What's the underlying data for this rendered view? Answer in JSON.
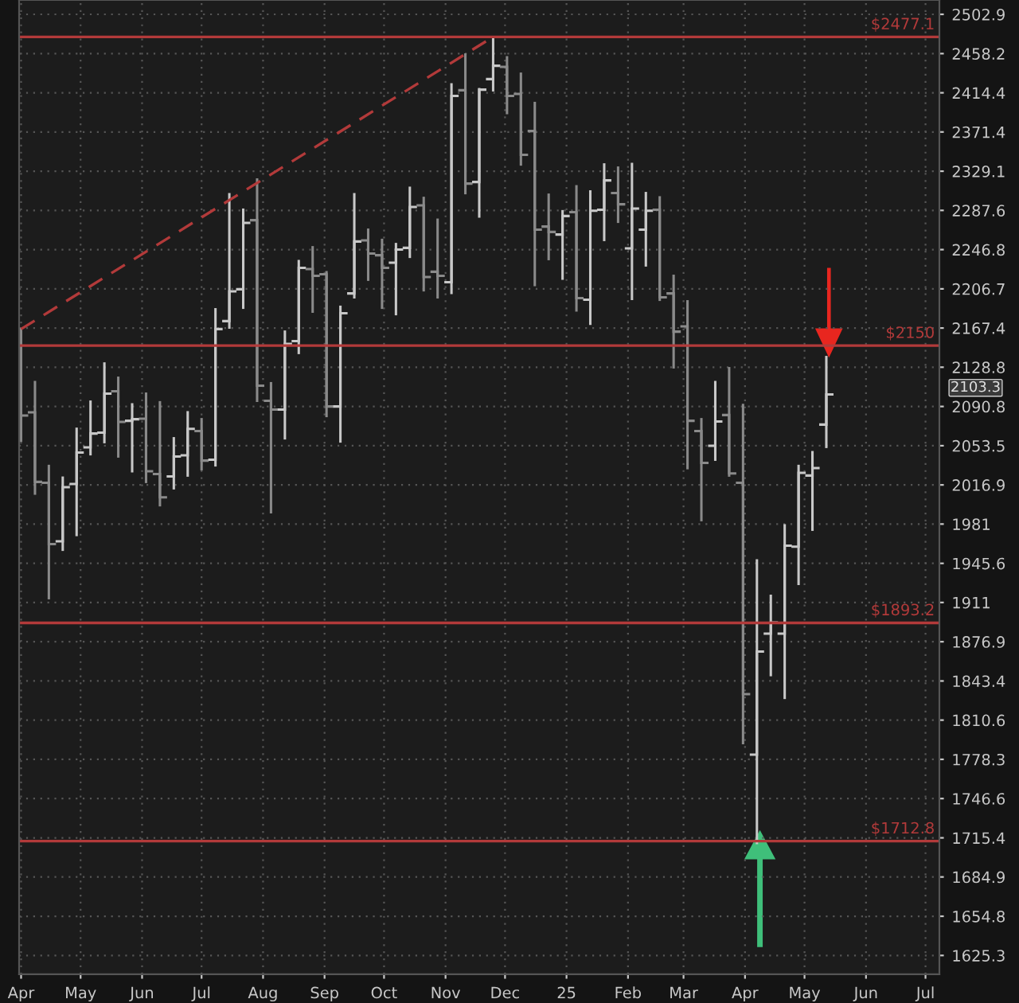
{
  "chart_data": {
    "type": "candlestick",
    "x": [
      "2024-04-01",
      "2024-04-08",
      "2024-04-15",
      "2024-04-22",
      "2024-04-29",
      "2024-05-06",
      "2024-05-13",
      "2024-05-20",
      "2024-05-27",
      "2024-06-03",
      "2024-06-10",
      "2024-06-17",
      "2024-06-24",
      "2024-07-01",
      "2024-07-08",
      "2024-07-15",
      "2024-07-22",
      "2024-07-29",
      "2024-08-05",
      "2024-08-12",
      "2024-08-19",
      "2024-08-26",
      "2024-09-02",
      "2024-09-09",
      "2024-09-16",
      "2024-09-23",
      "2024-09-30",
      "2024-10-07",
      "2024-10-14",
      "2024-10-21",
      "2024-10-28",
      "2024-11-04",
      "2024-11-11",
      "2024-11-18",
      "2024-11-25",
      "2024-12-02",
      "2024-12-09",
      "2024-12-16",
      "2024-12-23",
      "2024-12-30",
      "2025-01-06",
      "2025-01-13",
      "2025-01-20",
      "2025-01-27",
      "2025-02-03",
      "2025-02-10",
      "2025-02-17",
      "2025-02-24",
      "2025-03-03",
      "2025-03-10",
      "2025-03-17",
      "2025-03-24",
      "2025-03-31",
      "2025-04-07",
      "2025-04-14",
      "2025-04-21",
      "2025-04-28",
      "2025-05-05",
      "2025-05-12"
    ],
    "ohlc": [
      [
        2114.3,
        2166.4,
        2058.4,
        2082.1
      ],
      [
        2085.2,
        2114.3,
        2008.9,
        2019.7
      ],
      [
        2018.8,
        2034.5,
        1914.8,
        1962.9
      ],
      [
        1965.4,
        2023.6,
        1957.8,
        2014.8
      ],
      [
        2017.7,
        2069.5,
        1971.1,
        2047.0
      ],
      [
        2051.9,
        2095.4,
        2045.5,
        2065.0
      ],
      [
        2065.9,
        2132.4,
        2056.9,
        2103.1
      ],
      [
        2105.5,
        2118.5,
        2043.4,
        2076.0
      ],
      [
        2077.1,
        2092.8,
        2029.6,
        2078.6
      ],
      [
        2079.1,
        2103.1,
        2019.7,
        2029.6
      ],
      [
        2027.0,
        2094.8,
        1998.2,
        2005.5
      ],
      [
        2024.7,
        2060.5,
        2013.8,
        2043.4
      ],
      [
        2044.4,
        2085.2,
        2025.6,
        2069.5
      ],
      [
        2067.4,
        2078.6,
        2031.5,
        2039.5
      ],
      [
        2040.4,
        2186.1,
        2035.1,
        2166.4
      ],
      [
        2174.3,
        2304.6,
        2167.9,
        2204.2
      ],
      [
        2206.3,
        2288.3,
        2187.7,
        2274.5
      ],
      [
        2277.3,
        2320.3,
        2096.3,
        2110.8
      ],
      [
        2096.3,
        2113.2,
        1991.8,
        2087.8
      ],
      [
        2087.8,
        2163.8,
        2060.5,
        2151.7
      ],
      [
        2154.4,
        2235.0,
        2142.8,
        2228.0
      ],
      [
        2226.8,
        2249.2,
        2183.8,
        2219.9
      ],
      [
        2221.5,
        2223.6,
        2081.7,
        2090.8
      ],
      [
        2090.8,
        2188.6,
        2057.5,
        2182.2
      ],
      [
        2202.1,
        2304.6,
        2198.2,
        2255.2
      ],
      [
        2256.3,
        2267.4,
        2216.0,
        2242.7
      ],
      [
        2241.0,
        2256.8,
        2187.7,
        2228.0
      ],
      [
        2233.4,
        2252.5,
        2181.3,
        2246.9
      ],
      [
        2248.6,
        2311.4,
        2239.4,
        2291.2
      ],
      [
        2292.9,
        2300.7,
        2205.3,
        2218.7
      ],
      [
        2224.1,
        2277.8,
        2198.2,
        2219.9
      ],
      [
        2213.4,
        2423.7,
        2202.6,
        2410.9
      ],
      [
        2417.2,
        2457.1,
        2305.8,
        2315.9
      ],
      [
        2317.6,
        2418.4,
        2281.2,
        2417.9
      ],
      [
        2429.6,
        2476.9,
        2417.2,
        2444.5
      ],
      [
        2443.3,
        2454.0,
        2392.1,
        2410.9
      ],
      [
        2413.1,
        2435.6,
        2336.3,
        2346.6
      ],
      [
        2372.4,
        2403.1,
        2210.6,
        2267.4
      ],
      [
        2270.7,
        2304.1,
        2237.1,
        2265.1
      ],
      [
        2262.4,
        2286.7,
        2217.1,
        2281.7
      ],
      [
        2285.7,
        2313.0,
        2185.0,
        2197.3
      ],
      [
        2195.7,
        2307.5,
        2171.7,
        2287.3
      ],
      [
        2288.3,
        2336.3,
        2256.8,
        2319.3
      ],
      [
        2305.8,
        2332.9,
        2275.7,
        2294.0
      ],
      [
        2248.1,
        2336.8,
        2196.6,
        2289.5
      ],
      [
        2267.4,
        2305.8,
        2230.6,
        2287.3
      ],
      [
        2288.3,
        2301.3,
        2195.7,
        2198.2
      ],
      [
        2202.1,
        2219.9,
        2128.7,
        2163.8
      ],
      [
        2169.1,
        2194.1,
        2032.5,
        2077.1
      ],
      [
        2067.4,
        2078.6,
        1984.6,
        2037.4
      ],
      [
        2053.4,
        2114.3,
        2040.4,
        2076.5
      ],
      [
        2082.6,
        2127.8,
        2025.6,
        2027.6
      ],
      [
        2018.8,
        2092.3,
        1791.7,
        1832.3
      ],
      [
        1782.1,
        1948.2,
        1711.3,
        1868.4
      ],
      [
        1883.9,
        1916.8,
        1848.4,
        1893.5
      ],
      [
        1883.9,
        1979.8,
        1829.2,
        1961.5
      ],
      [
        1960.6,
        2034.5,
        1927.4,
        2028.1
      ],
      [
        2025.6,
        2047.4,
        1975.9,
        2032.5
      ],
      [
        2073.5,
        2138.7,
        2052.4,
        2102.4
      ]
    ],
    "colors": [
      "#8a8a8a",
      "#8a8a8a",
      "#8a8a8a",
      "#c8c8c8",
      "#c8c8c8",
      "#c8c8c8",
      "#c8c8c8",
      "#8a8a8a",
      "#c8c8c8",
      "#8a8a8a",
      "#8a8a8a",
      "#c8c8c8",
      "#c8c8c8",
      "#8a8a8a",
      "#c8c8c8",
      "#c8c8c8",
      "#c8c8c8",
      "#8a8a8a",
      "#8a8a8a",
      "#c8c8c8",
      "#c8c8c8",
      "#8a8a8a",
      "#8a8a8a",
      "#c8c8c8",
      "#c8c8c8",
      "#8a8a8a",
      "#8a8a8a",
      "#c8c8c8",
      "#c8c8c8",
      "#8a8a8a",
      "#8a8a8a",
      "#c8c8c8",
      "#8a8a8a",
      "#c8c8c8",
      "#c8c8c8",
      "#8a8a8a",
      "#8a8a8a",
      "#8a8a8a",
      "#8a8a8a",
      "#c8c8c8",
      "#8a8a8a",
      "#c8c8c8",
      "#c8c8c8",
      "#8a8a8a",
      "#c8c8c8",
      "#c8c8c8",
      "#8a8a8a",
      "#8a8a8a",
      "#8a8a8a",
      "#8a8a8a",
      "#c8c8c8",
      "#8a8a8a",
      "#8a8a8a",
      "#c8c8c8",
      "#c8c8c8",
      "#c8c8c8",
      "#c8c8c8",
      "#c8c8c8",
      "#c8c8c8"
    ],
    "series": [
      {
        "type": "line",
        "x": [
          "2024-04-01",
          "2024-11-25"
        ],
        "values": [
          2166.4,
          2477.1
        ],
        "color": "#b23a3a",
        "line_style": "dashed"
      }
    ],
    "log": "y",
    "xlim": [
      "2024-03-31",
      "2025-07-08"
    ],
    "xticks": [
      {
        "value": "2024-04-01",
        "label": "Apr"
      },
      {
        "value": "2024-05-01",
        "label": "May"
      },
      {
        "value": "2024-06-01",
        "label": "Jun"
      },
      {
        "value": "2024-07-01",
        "label": "Jul"
      },
      {
        "value": "2024-08-01",
        "label": "Aug"
      },
      {
        "value": "2024-09-01",
        "label": "Sep"
      },
      {
        "value": "2024-10-01",
        "label": "Oct"
      },
      {
        "value": "2024-11-01",
        "label": "Nov"
      },
      {
        "value": "2024-12-01",
        "label": "Dec"
      },
      {
        "value": "2025-01-01",
        "label": "25"
      },
      {
        "value": "2025-02-01",
        "label": "Feb"
      },
      {
        "value": "2025-03-01",
        "label": "Mar"
      },
      {
        "value": "2025-04-01",
        "label": "Apr"
      },
      {
        "value": "2025-05-01",
        "label": "May"
      },
      {
        "value": "2025-06-01",
        "label": "Jun"
      },
      {
        "value": "2025-07-01",
        "label": "Jul"
      }
    ],
    "ylim": [
      1611.3,
      2519.4
    ],
    "yticks": [
      1625.3,
      1654.8,
      1684.9,
      1715.4,
      1746.6,
      1778.3,
      1810.6,
      1843.4,
      1876.9,
      1911,
      1945.6,
      1981,
      2016.9,
      2053.5,
      2090.8,
      2128.8,
      2167.4,
      2206.7,
      2246.8,
      2287.6,
      2329.1,
      2371.4,
      2414.4,
      2458.2,
      2502.9
    ],
    "grid": true,
    "ref_lines": [
      {
        "axis": "y",
        "value": 2477.1,
        "label": "$2477.1",
        "color": "#b23a3a"
      },
      {
        "axis": "y",
        "value": 2150,
        "label": "$2150",
        "color": "#b23a3a"
      },
      {
        "axis": "y",
        "value": 1893.2,
        "label": "$1893.2",
        "color": "#b23a3a"
      },
      {
        "axis": "y",
        "value": 1712.8,
        "label": "$1712.8",
        "color": "#b23a3a"
      }
    ],
    "annotations": [
      "2103.3"
    ]
  }
}
